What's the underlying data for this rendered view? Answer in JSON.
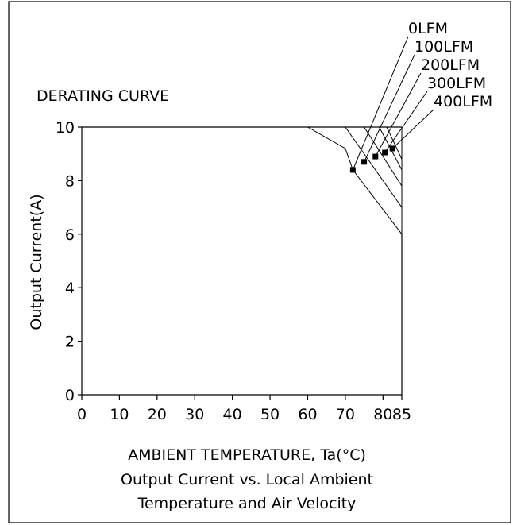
{
  "chart_data": {
    "type": "line",
    "title": "DERATING CURVE",
    "xlabel": "AMBIENT TEMPERATURE, Ta(°C)",
    "ylabel": "Output Current(A)",
    "caption_lines": [
      "Output Current vs. Local Ambient",
      "Temperature and Air Velocity"
    ],
    "x_ticks": [
      0,
      10,
      20,
      30,
      40,
      50,
      60,
      70,
      80,
      85
    ],
    "y_ticks": [
      0,
      2,
      4,
      6,
      8,
      10
    ],
    "xlim": [
      0,
      85
    ],
    "ylim": [
      0,
      10
    ],
    "grid": false,
    "series": [
      {
        "name": "0LFM",
        "x": [
          0,
          60,
          70,
          72,
          85
        ],
        "y": [
          10,
          10,
          9.2,
          8.4,
          6.0
        ],
        "marker": [
          72,
          8.4
        ]
      },
      {
        "name": "100LFM",
        "x": [
          0,
          70,
          85
        ],
        "y": [
          10,
          10,
          7.0
        ],
        "marker": [
          75,
          8.7
        ]
      },
      {
        "name": "200LFM",
        "x": [
          0,
          75,
          85
        ],
        "y": [
          10,
          10,
          7.8
        ],
        "marker": [
          78,
          8.9
        ]
      },
      {
        "name": "300LFM",
        "x": [
          0,
          79,
          85
        ],
        "y": [
          10,
          10,
          8.4
        ],
        "marker": [
          80.5,
          9.05
        ]
      },
      {
        "name": "400LFM",
        "x": [
          0,
          81,
          85
        ],
        "y": [
          10,
          10,
          8.8
        ],
        "marker": [
          82.5,
          9.2
        ]
      }
    ]
  }
}
